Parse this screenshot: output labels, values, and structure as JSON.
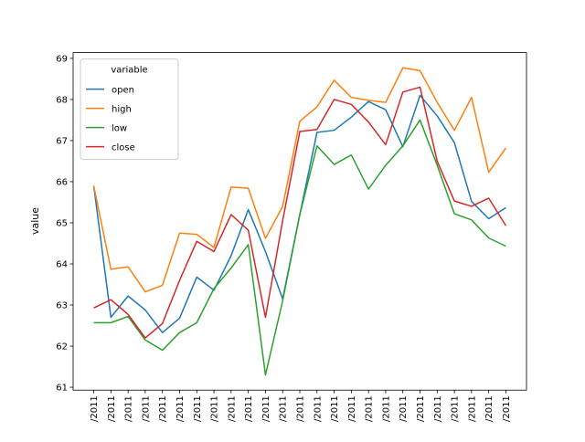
{
  "chart_data": {
    "type": "line",
    "ylabel": "value",
    "categories": [
      "/2011",
      "/2011",
      "/2011",
      "/2011",
      "/2011",
      "/2011",
      "/2011",
      "/2011",
      "/2011",
      "/2011",
      "/2011",
      "/2011",
      "/2011",
      "/2011",
      "/2011",
      "/2011",
      "/2011",
      "/2011",
      "/2011",
      "/2011",
      "/2011",
      "/2011",
      "/2011",
      "/2011",
      "/2011"
    ],
    "series": [
      {
        "name": "open",
        "color": "#1f77b4",
        "values": [
          65.9,
          62.7,
          63.22,
          62.88,
          62.33,
          62.68,
          63.68,
          63.36,
          64.2,
          65.32,
          64.3,
          63.15,
          65.2,
          67.2,
          67.25,
          67.57,
          67.95,
          67.75,
          66.85,
          68.1,
          67.6,
          66.95,
          65.52,
          65.1,
          65.37
        ]
      },
      {
        "name": "high",
        "color": "#ff7f0e",
        "values": [
          65.9,
          63.87,
          63.93,
          63.32,
          63.48,
          64.75,
          64.72,
          64.4,
          65.87,
          65.84,
          64.62,
          65.4,
          67.47,
          67.82,
          68.47,
          68.05,
          67.98,
          67.93,
          68.77,
          68.7,
          67.93,
          67.25,
          68.05,
          66.23,
          66.82
        ]
      },
      {
        "name": "low",
        "color": "#2ca02c",
        "values": [
          62.57,
          62.57,
          62.72,
          62.15,
          61.9,
          62.33,
          62.57,
          63.4,
          63.9,
          64.47,
          61.3,
          63.1,
          65.2,
          66.87,
          66.42,
          66.65,
          65.82,
          66.4,
          66.87,
          67.5,
          66.4,
          65.22,
          65.07,
          64.63,
          64.43
        ]
      },
      {
        "name": "close",
        "color": "#d62728",
        "values": [
          62.93,
          63.13,
          62.77,
          62.2,
          62.55,
          63.6,
          64.55,
          64.3,
          65.2,
          64.82,
          62.7,
          65.05,
          67.22,
          67.27,
          68.0,
          67.88,
          67.45,
          66.9,
          68.18,
          68.3,
          66.5,
          65.53,
          65.4,
          65.6,
          64.93
        ]
      }
    ],
    "legend_title": "variable",
    "legend": "upper left",
    "ylim": [
      60.93,
      69.14
    ],
    "yticks": [
      61,
      62,
      63,
      64,
      65,
      66,
      67,
      68,
      69
    ]
  }
}
